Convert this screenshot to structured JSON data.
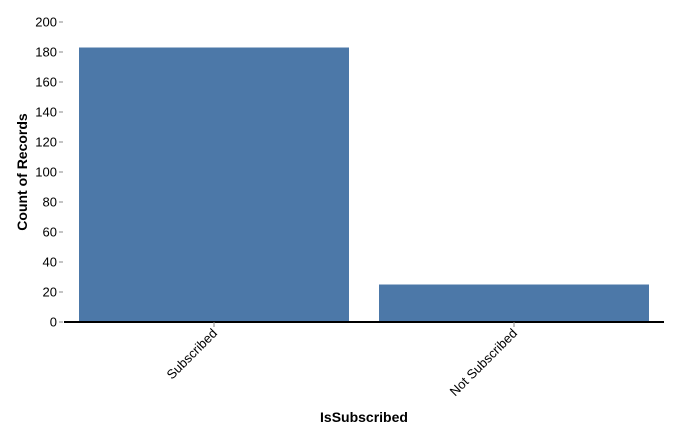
{
  "chart_data": {
    "type": "bar",
    "categories": [
      "Subscribed",
      "Not Subscribed"
    ],
    "values": [
      183,
      25
    ],
    "xlabel": "IsSubscribed",
    "ylabel": "Count of Records",
    "ylim": [
      0,
      200
    ],
    "yticks": [
      0,
      20,
      40,
      60,
      80,
      100,
      120,
      140,
      160,
      180,
      200
    ],
    "bar_color": "#4c78a8",
    "grid": false,
    "legend": "none"
  }
}
